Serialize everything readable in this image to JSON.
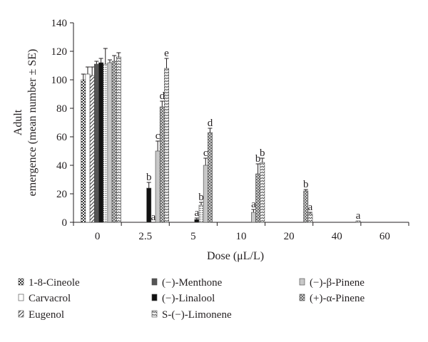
{
  "chart_data": {
    "type": "bar",
    "xlabel": "Dose (μL/L)",
    "ylabel_line1": "Adult",
    "ylabel_line2": "emergence (mean number ± SE)",
    "ylim": [
      0,
      140
    ],
    "y_ticks": [
      0,
      20,
      40,
      60,
      80,
      100,
      120,
      140
    ],
    "categories": [
      "0",
      "2.5",
      "5",
      "10",
      "20",
      "40",
      "60"
    ],
    "legend_position": "bottom",
    "grid": false,
    "series": [
      {
        "name": "1-8-Cineole",
        "pattern": "checker",
        "values": [
          100,
          0,
          0,
          0,
          0,
          0,
          0
        ],
        "errors": [
          4,
          0,
          0,
          0,
          0,
          0,
          0
        ],
        "letters": [
          "",
          "",
          "",
          "",
          "",
          "",
          ""
        ]
      },
      {
        "name": "Carvacrol",
        "pattern": "open",
        "values": [
          104,
          0,
          0,
          0,
          0,
          0,
          0
        ],
        "errors": [
          5,
          0,
          0,
          0,
          0,
          0,
          0
        ],
        "letters": [
          "",
          "",
          "",
          "",
          "",
          "",
          ""
        ]
      },
      {
        "name": "Eugenol",
        "pattern": "diagonal",
        "values": [
          103,
          0,
          0,
          0,
          0,
          0,
          0
        ],
        "errors": [
          6,
          0,
          0,
          0,
          0,
          0,
          0
        ],
        "letters": [
          "",
          "",
          "",
          "",
          "",
          "",
          ""
        ]
      },
      {
        "name": "(−)-Menthone",
        "pattern": "darkgray",
        "values": [
          111,
          0,
          0,
          0,
          0,
          0,
          0
        ],
        "errors": [
          2,
          0,
          0,
          0,
          0,
          0,
          0
        ],
        "letters": [
          "",
          "",
          "",
          "",
          "",
          "",
          ""
        ]
      },
      {
        "name": "(−)-Linalool",
        "pattern": "black",
        "values": [
          112,
          24,
          2,
          0,
          0,
          0,
          0
        ],
        "errors": [
          3,
          4,
          1,
          0,
          0,
          0,
          0
        ],
        "letters": [
          "",
          "b",
          "a",
          "",
          "",
          "",
          ""
        ]
      },
      {
        "name": "S-(−)-Limonene",
        "pattern": "dots",
        "values": [
          111,
          0,
          12,
          0,
          0,
          0,
          0
        ],
        "errors": [
          11,
          0,
          2,
          0,
          0,
          0,
          0
        ],
        "letters": [
          "",
          "a",
          "b",
          "",
          "",
          "",
          ""
        ]
      },
      {
        "name": "(−)-β-Pinene",
        "pattern": "lightgray",
        "values": [
          112,
          50,
          40,
          7,
          0,
          0,
          0
        ],
        "errors": [
          2,
          7,
          5,
          2,
          0,
          0,
          0
        ],
        "letters": [
          "",
          "c",
          "c",
          "a",
          "",
          "",
          ""
        ]
      },
      {
        "name": "(+)-α-Pinene",
        "pattern": "crosshatch",
        "values": [
          113,
          81,
          63,
          34,
          22,
          0,
          0
        ],
        "errors": [
          4,
          4,
          3,
          7,
          1,
          0,
          0
        ],
        "letters": [
          "",
          "d",
          "d",
          "b",
          "b",
          "",
          ""
        ]
      },
      {
        "name": "S-(−)-Limonene",
        "pattern": "zigzag",
        "values": [
          116,
          108,
          0,
          42,
          6,
          1,
          0
        ],
        "errors": [
          3,
          7,
          0,
          3,
          1,
          0,
          0
        ],
        "letters": [
          "",
          "e",
          "",
          "b",
          "a",
          "a",
          ""
        ]
      }
    ]
  },
  "legend": {
    "entries": [
      {
        "label": "1-8-Cineole",
        "pattern": "checker"
      },
      {
        "label": "(−)-Menthone",
        "pattern": "darkgray"
      },
      {
        "label": "(−)-β-Pinene",
        "pattern": "lightgray"
      },
      {
        "label": "Carvacrol",
        "pattern": "open"
      },
      {
        "label": "(−)-Linalool",
        "pattern": "black"
      },
      {
        "label": "(+)-α-Pinene",
        "pattern": "crosshatch"
      },
      {
        "label": "Eugenol",
        "pattern": "diagonal"
      },
      {
        "label": "S-(−)-Limonene",
        "pattern": "zigzag"
      }
    ]
  },
  "colors": {
    "axis": "#231f20",
    "dark_fill": "#555555",
    "black_fill": "#111111",
    "light_fill": "#c8c8c8"
  }
}
